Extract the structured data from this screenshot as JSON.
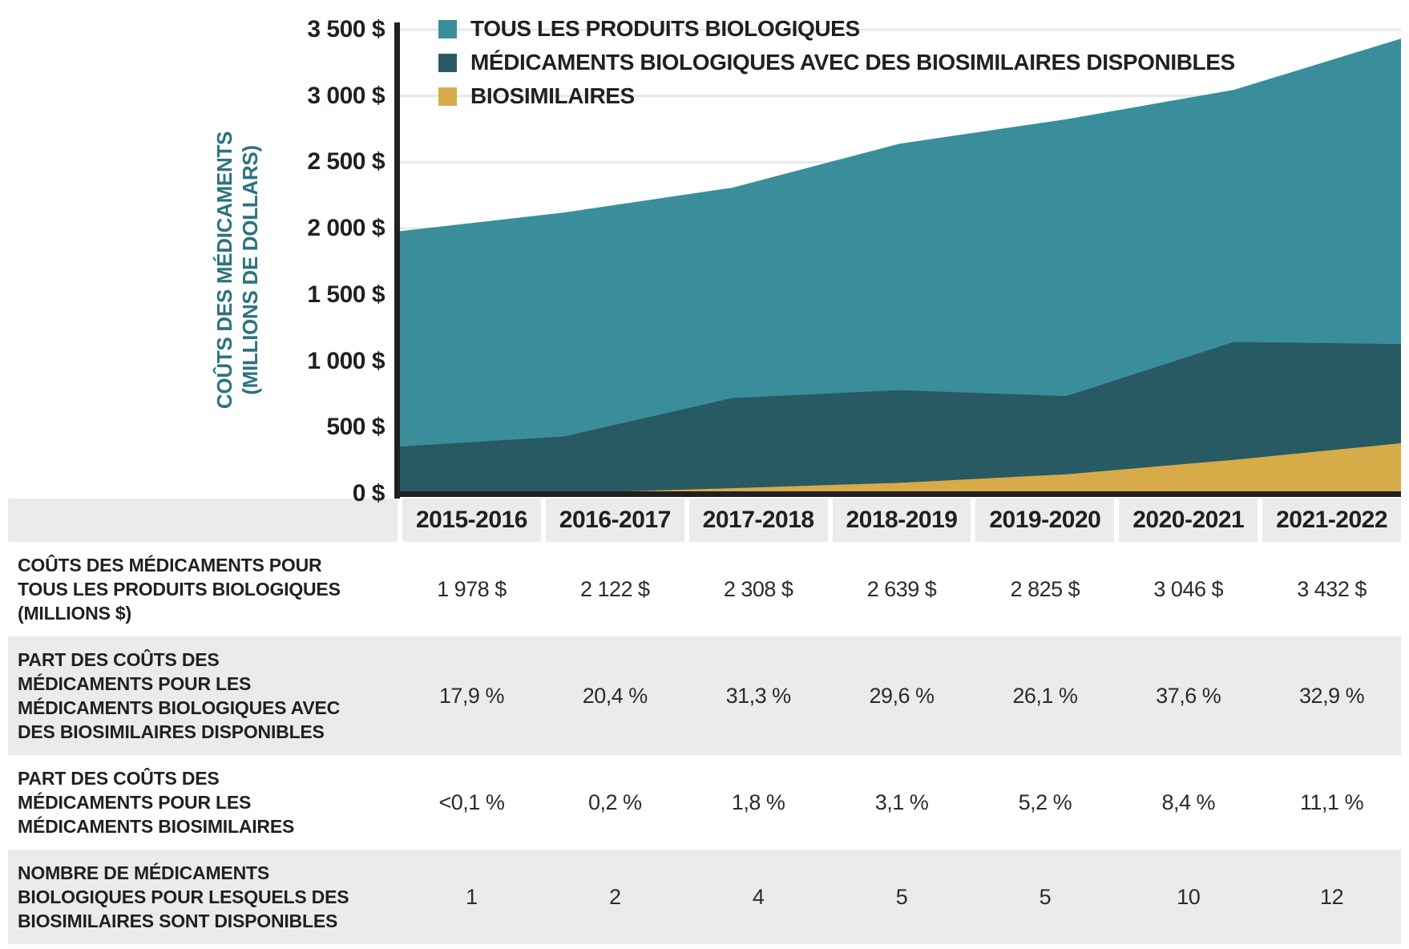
{
  "y_axis": {
    "title_line1": "COÛTS DES MÉDICAMENTS",
    "title_line2": "(MILLIONS DE DOLLARS)",
    "ticks": [
      {
        "label": "3 500 $",
        "value": 3500
      },
      {
        "label": "3 000 $",
        "value": 3000
      },
      {
        "label": "2 500 $",
        "value": 2500
      },
      {
        "label": "2 000 $",
        "value": 2000
      },
      {
        "label": "1 500 $",
        "value": 1500
      },
      {
        "label": "1 000 $",
        "value": 1000
      },
      {
        "label": "500 $",
        "value": 500
      },
      {
        "label": "0 $",
        "value": 0
      }
    ]
  },
  "chart_data": {
    "type": "area",
    "overlaid": true,
    "categories": [
      "2015-2016",
      "2016-2017",
      "2017-2018",
      "2018-2019",
      "2019-2020",
      "2020-2021",
      "2021-2022"
    ],
    "series": [
      {
        "name": "TOUS LES PRODUITS BIOLOGIQUES",
        "color": "#3A8E9B",
        "values": [
          1978,
          2122,
          2308,
          2639,
          2825,
          3046,
          3432
        ]
      },
      {
        "name": "MÉDICAMENTS BIOLOGIQUES AVEC DES BIOSIMILAIRES DISPONIBLES",
        "color": "#285A64",
        "values": [
          354,
          433,
          722,
          781,
          737,
          1145,
          1129
        ]
      },
      {
        "name": "BIOSIMILAIRES",
        "color": "#D6AB48",
        "values": [
          2,
          4,
          42,
          82,
          147,
          256,
          381
        ]
      }
    ],
    "ylabel": "COÛTS DES MÉDICAMENTS (MILLIONS DE DOLLARS)",
    "ylim": [
      0,
      3500
    ],
    "grid": true,
    "gridline_color": "#E8E8E8",
    "axis_color": "#231F20",
    "legend_position": "top-left"
  },
  "table": {
    "columns": [
      "2015-2016",
      "2016-2017",
      "2017-2018",
      "2018-2019",
      "2019-2020",
      "2020-2021",
      "2021-2022"
    ],
    "rows": [
      {
        "label": "COÛTS DES MÉDICAMENTS POUR\nTOUS LES PRODUITS BIOLOGIQUES\n(MILLIONS $)",
        "values": [
          "1 978 $",
          "2 122 $",
          "2 308 $",
          "2 639 $",
          "2 825 $",
          "3 046 $",
          "3 432 $"
        ]
      },
      {
        "label": "PART DES COÛTS DES\nMÉDICAMENTS POUR LES\nMÉDICAMENTS BIOLOGIQUES AVEC\nDES BIOSIMILAIRES DISPONIBLES",
        "values": [
          "17,9 %",
          "20,4 %",
          "31,3 %",
          "29,6 %",
          "26,1 %",
          "37,6 %",
          "32,9 %"
        ]
      },
      {
        "label": "PART DES COÛTS DES\nMÉDICAMENTS POUR LES\nMÉDICAMENTS BIOSIMILAIRES",
        "values": [
          "<0,1 %",
          "0,2 %",
          "1,8 %",
          "3,1 %",
          "5,2 %",
          "8,4 %",
          "11,1 %"
        ]
      },
      {
        "label": "NOMBRE DE MÉDICAMENTS\nBIOLOGIQUES POUR LESQUELS DES\nBIOSIMILAIRES SONT DISPONIBLES",
        "values": [
          "1",
          "2",
          "4",
          "5",
          "5",
          "10",
          "12"
        ]
      }
    ]
  }
}
